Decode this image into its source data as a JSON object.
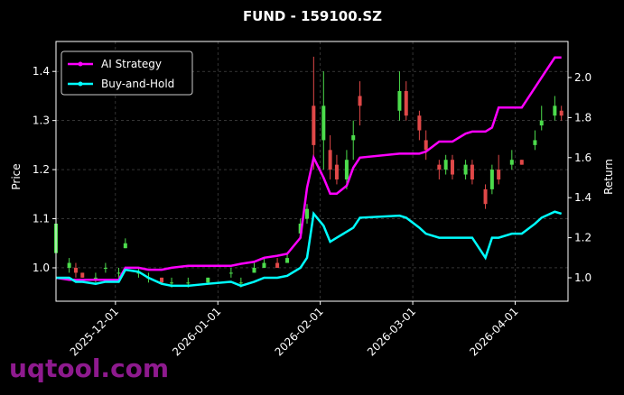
{
  "chart_data": {
    "type": "candlestick_lines",
    "title": "FUND - 159100.SZ",
    "ylabel": "Price",
    "y2label": "Return",
    "watermark": "uqtool.com",
    "x": [
      "2025-11-13",
      "2025-11-17",
      "2025-11-19",
      "2025-11-21",
      "2025-11-25",
      "2025-11-28",
      "2025-12-02",
      "2025-12-04",
      "2025-12-08",
      "2025-12-11",
      "2025-12-15",
      "2025-12-18",
      "2025-12-23",
      "2025-12-29",
      "2026-01-05",
      "2026-01-08",
      "2026-01-12",
      "2026-01-15",
      "2026-01-19",
      "2026-01-22",
      "2026-01-26",
      "2026-01-28",
      "2026-01-30",
      "2026-02-02",
      "2026-02-04",
      "2026-02-06",
      "2026-02-09",
      "2026-02-11",
      "2026-02-13",
      "2026-02-25",
      "2026-02-27",
      "2026-03-03",
      "2026-03-05",
      "2026-03-09",
      "2026-03-11",
      "2026-03-13",
      "2026-03-17",
      "2026-03-19",
      "2026-03-23",
      "2026-03-25",
      "2026-03-27",
      "2026-03-31",
      "2026-04-03",
      "2026-04-07",
      "2026-04-09",
      "2026-04-13",
      "2026-04-15"
    ],
    "candles": {
      "up_color": "#4cdc4c",
      "down_color": "#e04848",
      "open": [
        1.03,
        1.0,
        1.0,
        0.99,
        0.98,
        1.0,
        0.99,
        1.04,
        0.99,
        0.98,
        0.98,
        0.97,
        0.97,
        0.97,
        0.99,
        0.97,
        0.99,
        1.0,
        1.01,
        1.01,
        1.07,
        1.1,
        1.33,
        1.26,
        1.24,
        1.21,
        1.18,
        1.26,
        1.35,
        1.32,
        1.36,
        1.31,
        1.26,
        1.21,
        1.2,
        1.22,
        1.19,
        1.21,
        1.16,
        1.16,
        1.2,
        1.21,
        1.22,
        1.25,
        1.29,
        1.31,
        1.32
      ],
      "high": [
        1.12,
        1.02,
        1.01,
        0.99,
        0.99,
        1.01,
        1.0,
        1.06,
        1.0,
        0.99,
        0.98,
        0.98,
        0.98,
        0.98,
        1.0,
        0.98,
        1.01,
        1.02,
        1.02,
        1.03,
        1.1,
        1.13,
        1.43,
        1.4,
        1.27,
        1.23,
        1.24,
        1.3,
        1.38,
        1.4,
        1.38,
        1.32,
        1.28,
        1.22,
        1.23,
        1.23,
        1.22,
        1.22,
        1.17,
        1.21,
        1.23,
        1.24,
        1.22,
        1.28,
        1.33,
        1.35,
        1.33
      ],
      "low": [
        1.02,
        0.99,
        0.98,
        0.98,
        0.97,
        0.99,
        0.98,
        1.04,
        0.98,
        0.97,
        0.97,
        0.96,
        0.96,
        0.97,
        0.98,
        0.96,
        0.99,
        1.0,
        1.0,
        1.01,
        1.06,
        1.09,
        1.2,
        1.2,
        1.18,
        1.17,
        1.16,
        1.22,
        1.29,
        1.3,
        1.3,
        1.26,
        1.22,
        1.18,
        1.19,
        1.18,
        1.18,
        1.17,
        1.12,
        1.15,
        1.17,
        1.2,
        1.21,
        1.24,
        1.28,
        1.3,
        1.3
      ],
      "close": [
        1.09,
        1.01,
        0.99,
        0.98,
        0.98,
        1.0,
        0.99,
        1.05,
        0.99,
        0.98,
        0.97,
        0.97,
        0.97,
        0.98,
        0.99,
        0.97,
        1.0,
        1.01,
        1.0,
        1.02,
        1.09,
        1.12,
        1.25,
        1.33,
        1.2,
        1.18,
        1.22,
        1.27,
        1.33,
        1.36,
        1.31,
        1.28,
        1.24,
        1.2,
        1.22,
        1.19,
        1.21,
        1.18,
        1.13,
        1.2,
        1.18,
        1.22,
        1.21,
        1.26,
        1.3,
        1.33,
        1.31
      ]
    },
    "series": [
      {
        "name": "AI Strategy",
        "color": "#ff00ff",
        "axis": "y2",
        "values": [
          1.0,
          0.99,
          0.99,
          0.99,
          0.99,
          0.99,
          0.99,
          1.05,
          1.05,
          1.04,
          1.04,
          1.05,
          1.06,
          1.06,
          1.06,
          1.07,
          1.08,
          1.1,
          1.11,
          1.12,
          1.2,
          1.45,
          1.6,
          1.5,
          1.42,
          1.42,
          1.46,
          1.55,
          1.6,
          1.62,
          1.62,
          1.62,
          1.63,
          1.68,
          1.68,
          1.68,
          1.72,
          1.73,
          1.73,
          1.75,
          1.85,
          1.85,
          1.85,
          1.95,
          2.0,
          2.1,
          2.1
        ]
      },
      {
        "name": "Buy-and-Hold",
        "color": "#00ffff",
        "axis": "y2",
        "values": [
          1.0,
          1.0,
          0.98,
          0.98,
          0.97,
          0.98,
          0.98,
          1.04,
          1.03,
          1.0,
          0.97,
          0.96,
          0.96,
          0.97,
          0.98,
          0.96,
          0.98,
          1.0,
          1.0,
          1.01,
          1.05,
          1.1,
          1.32,
          1.26,
          1.18,
          1.2,
          1.23,
          1.25,
          1.3,
          1.31,
          1.3,
          1.25,
          1.22,
          1.2,
          1.2,
          1.2,
          1.2,
          1.2,
          1.1,
          1.2,
          1.2,
          1.22,
          1.22,
          1.27,
          1.3,
          1.33,
          1.32
        ]
      }
    ],
    "xlim": [
      "2025-11-13",
      "2026-04-17"
    ],
    "xticks": [
      "2025-12-01",
      "2026-01-01",
      "2026-02-01",
      "2026-03-01",
      "2026-04-01"
    ],
    "ylim": [
      0.932,
      1.461
    ],
    "yticks": [
      {
        "value": 1.0,
        "label": "1.0"
      },
      1.1,
      1.2,
      1.3,
      1.4
    ],
    "y2lim": [
      0.883,
      2.18
    ],
    "y2ticks": [
      {
        "value": 1.0,
        "label": "1.0"
      },
      1.2,
      1.4,
      1.6,
      1.8,
      {
        "value": 2.0,
        "label": "2.0"
      }
    ],
    "grid": true,
    "legend": "upper-left"
  }
}
